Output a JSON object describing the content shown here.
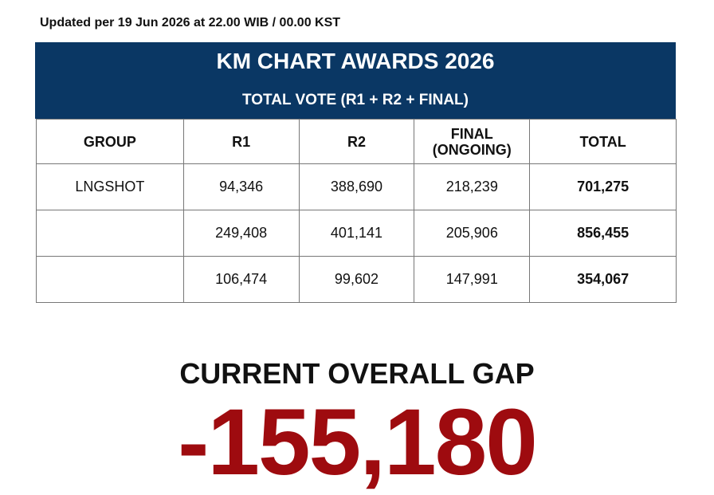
{
  "header": {
    "updated": "Updated per 19 Jun 2026 at 22.00 WIB / 00.00 KST",
    "title": "KM CHART AWARDS 2026",
    "subtitle": "TOTAL VOTE (R1 + R2 + FINAL)"
  },
  "table": {
    "columns": [
      "GROUP",
      "R1",
      "R2",
      "FINAL (ONGOING)",
      "TOTAL"
    ],
    "rows": [
      {
        "group": "LNGSHOT",
        "r1": "94,346",
        "r2": "388,690",
        "final": "218,239",
        "total": "701,275"
      },
      {
        "r1": "249,408",
        "r2": "401,141",
        "final": "205,906",
        "total": "856,455"
      },
      {
        "r1": "106,474",
        "r2": "99,602",
        "final": "147,991",
        "total": "354,067"
      }
    ]
  },
  "gap": {
    "label": "CURRENT OVERALL GAP",
    "value": "-155,180"
  }
}
